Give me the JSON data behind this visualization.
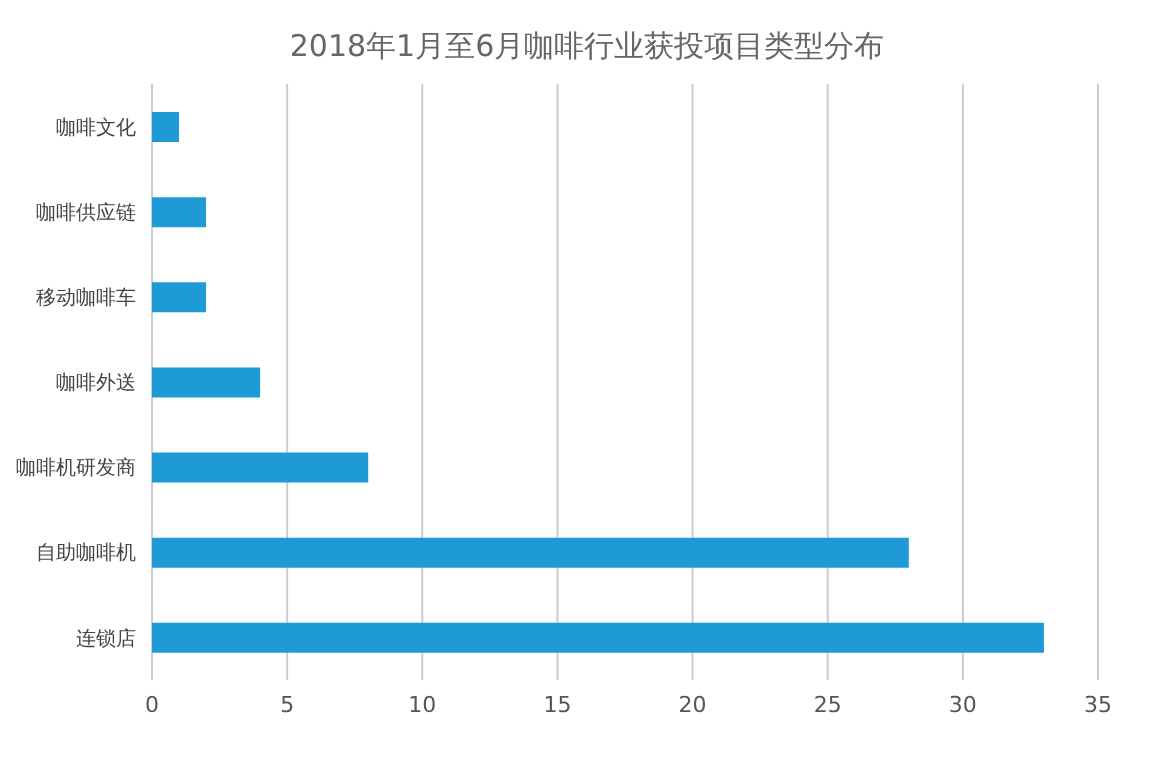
{
  "chart_data": {
    "type": "bar",
    "orientation": "horizontal",
    "title": "2018年1月至6月咖啡行业获投项目类型分布",
    "categories": [
      "咖啡文化",
      "咖啡供应链",
      "移动咖啡车",
      "咖啡外送",
      "咖啡机研发商",
      "自助咖啡机",
      "连锁店"
    ],
    "values": [
      1,
      2,
      2,
      4,
      8,
      28,
      33
    ],
    "color": "#1e9bd7",
    "xlim": [
      0,
      35
    ],
    "xticks": [
      0,
      5,
      10,
      15,
      20,
      25,
      30,
      35
    ],
    "grid": "x"
  }
}
